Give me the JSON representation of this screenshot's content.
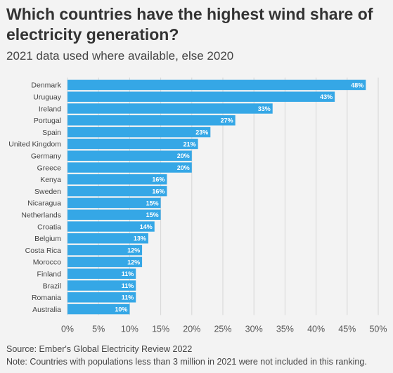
{
  "title": "Which countries have the highest wind share of electricity generation?",
  "subtitle": "2021 data used where available, else 2020",
  "source": "Source: Ember's Global Electricity Review 2022",
  "note": "Note: Countries with populations less than 3 million in 2021 were not included in this ranking.",
  "colors": {
    "bar": "#35a7e6",
    "grid": "#d6d6d6",
    "background": "#f3f3f3"
  },
  "chart_data": {
    "type": "bar",
    "orientation": "horizontal",
    "categories": [
      "Denmark",
      "Uruguay",
      "Ireland",
      "Portugal",
      "Spain",
      "United Kingdom",
      "Germany",
      "Greece",
      "Kenya",
      "Sweden",
      "Nicaragua",
      "Netherlands",
      "Croatia",
      "Belgium",
      "Costa Rica",
      "Morocco",
      "Finland",
      "Brazil",
      "Romania",
      "Australia"
    ],
    "values": [
      48,
      43,
      33,
      27,
      23,
      21,
      20,
      20,
      16,
      16,
      15,
      15,
      14,
      13,
      12,
      12,
      11,
      11,
      11,
      10
    ],
    "data_labels": [
      "48%",
      "43%",
      "33%",
      "27%",
      "23%",
      "21%",
      "20%",
      "20%",
      "16%",
      "16%",
      "15%",
      "15%",
      "14%",
      "13%",
      "12%",
      "12%",
      "11%",
      "11%",
      "11%",
      "10%"
    ],
    "xlim": [
      0,
      50
    ],
    "xticks": [
      0,
      5,
      10,
      15,
      20,
      25,
      30,
      35,
      40,
      45,
      50
    ],
    "xtick_labels": [
      "0%",
      "5%",
      "10%",
      "15%",
      "20%",
      "25%",
      "30%",
      "35%",
      "40%",
      "45%",
      "50%"
    ],
    "grid": true
  }
}
